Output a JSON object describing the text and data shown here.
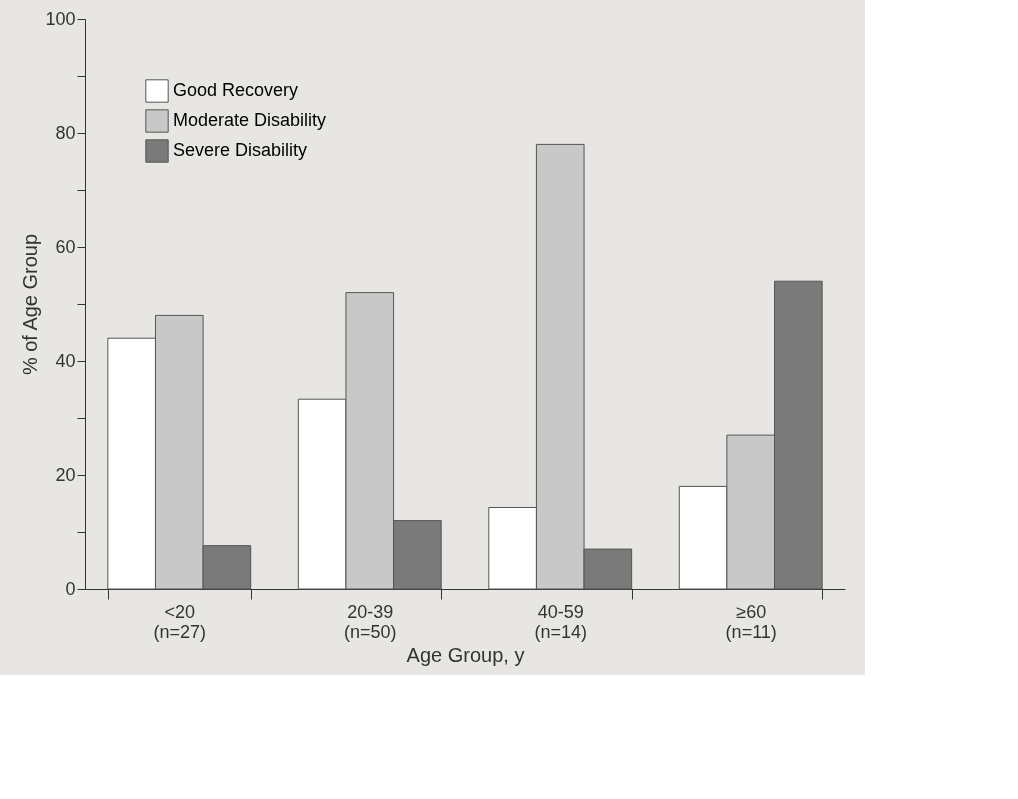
{
  "chart_data": {
    "type": "bar",
    "xlabel": "Age Group, y",
    "ylabel": "% of Age Group",
    "categories": [
      "<20\n(n=27)",
      "20-39\n(n=50)",
      "40-59\n(n=14)",
      "≥60\n(n=11)"
    ],
    "series": [
      {
        "name": "Good Recovery",
        "color": "#ffffff",
        "values": [
          44,
          33.3,
          14.3,
          18
        ]
      },
      {
        "name": "Moderate Disability",
        "color": "#c8c8c8",
        "values": [
          48,
          52,
          78,
          27
        ]
      },
      {
        "name": "Severe Disability",
        "color": "#7a7a7a",
        "values": [
          7.6,
          12,
          7,
          54
        ]
      }
    ],
    "ylim": [
      0,
      100
    ],
    "yticks": [
      0,
      {
        "value": 10,
        "label": null
      },
      20,
      {
        "value": 30,
        "label": null
      },
      40,
      {
        "value": 50,
        "label": null
      },
      60,
      {
        "value": 70,
        "label": null
      },
      80,
      {
        "value": 90,
        "label": null
      },
      100
    ],
    "grid": false,
    "legend": "top left"
  }
}
